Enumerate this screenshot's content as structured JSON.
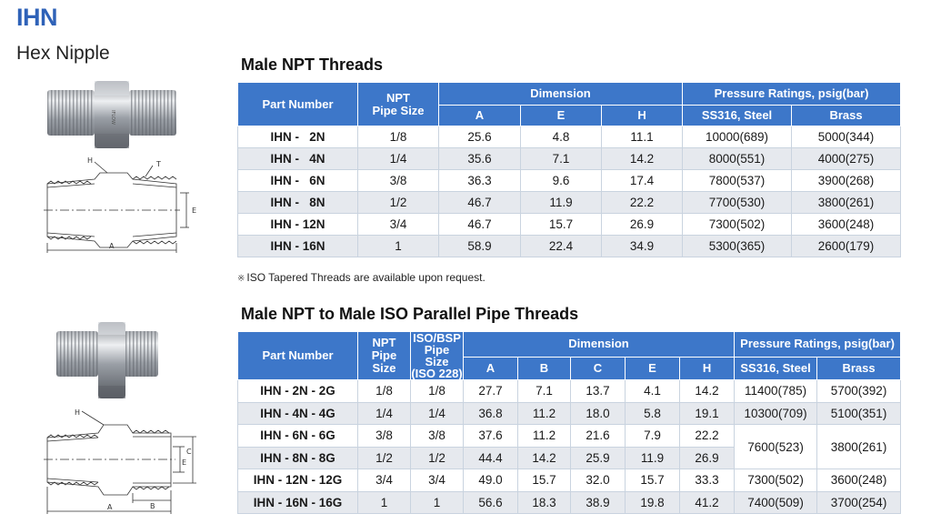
{
  "header": {
    "code": "IHN",
    "subtitle": "Hex Nipple"
  },
  "table1": {
    "title": "Male NPT Threads",
    "headers": {
      "part_number": "Part Number",
      "npt": "NPT",
      "pipe_size": "Pipe Size",
      "dimension": "Dimension",
      "dim_cols": [
        "A",
        "E",
        "H"
      ],
      "pressure": "Pressure Ratings, psig(bar)",
      "pressure_cols": [
        "SS316, Steel",
        "Brass"
      ]
    },
    "rows": [
      {
        "part": "IHN -   2N",
        "npt": "1/8",
        "a": "25.6",
        "e": "4.8",
        "h": "11.1",
        "ss": "10000(689)",
        "brass": "5000(344)"
      },
      {
        "part": "IHN -   4N",
        "npt": "1/4",
        "a": "35.6",
        "e": "7.1",
        "h": "14.2",
        "ss": "8000(551)",
        "brass": "4000(275)"
      },
      {
        "part": "IHN -   6N",
        "npt": "3/8",
        "a": "36.3",
        "e": "9.6",
        "h": "17.4",
        "ss": "7800(537)",
        "brass": "3900(268)"
      },
      {
        "part": "IHN -   8N",
        "npt": "1/2",
        "a": "46.7",
        "e": "11.9",
        "h": "22.2",
        "ss": "7700(530)",
        "brass": "3800(261)"
      },
      {
        "part": "IHN - 12N",
        "npt": "3/4",
        "a": "46.7",
        "e": "15.7",
        "h": "26.9",
        "ss": "7300(502)",
        "brass": "3600(248)"
      },
      {
        "part": "IHN - 16N",
        "npt": "1",
        "a": "58.9",
        "e": "22.4",
        "h": "34.9",
        "ss": "5300(365)",
        "brass": "2600(179)"
      }
    ],
    "note_symbol": "※",
    "note": "ISO Tapered Threads are available upon request."
  },
  "table2": {
    "title": "Male NPT to Male ISO Parallel Pipe Threads",
    "headers": {
      "part_number": "Part Number",
      "npt": "NPT",
      "pipe_size": "Pipe Size",
      "iso_l1": "ISO/BSP",
      "iso_l2": "Pipe Size",
      "iso_l3": "(ISO 228)",
      "dimension": "Dimension",
      "dim_cols": [
        "A",
        "B",
        "C",
        "E",
        "H"
      ],
      "pressure": "Pressure Ratings, psig(bar)",
      "pressure_cols": [
        "SS316, Steel",
        "Brass"
      ]
    },
    "rows": [
      {
        "part": "IHN - 2N - 2G",
        "npt": "1/8",
        "iso": "1/8",
        "a": "27.7",
        "b": "7.1",
        "c": "13.7",
        "e": "4.1",
        "h": "14.2",
        "ss": "11400(785)",
        "brass": "5700(392)"
      },
      {
        "part": "IHN - 4N - 4G",
        "npt": "1/4",
        "iso": "1/4",
        "a": "36.8",
        "b": "11.2",
        "c": "18.0",
        "e": "5.8",
        "h": "19.1",
        "ss": "10300(709)",
        "brass": "5100(351)"
      },
      {
        "part": "IHN - 6N - 6G",
        "npt": "3/8",
        "iso": "3/8",
        "a": "37.6",
        "b": "11.2",
        "c": "21.6",
        "e": "7.9",
        "h": "22.2",
        "ss": "7600(523)",
        "brass": "3800(261)"
      },
      {
        "part": "IHN - 8N - 8G",
        "npt": "1/2",
        "iso": "1/2",
        "a": "44.4",
        "b": "14.2",
        "c": "25.9",
        "e": "11.9",
        "h": "26.9"
      },
      {
        "part": "IHN - 12N - 12G",
        "npt": "3/4",
        "iso": "3/4",
        "a": "49.0",
        "b": "15.7",
        "c": "32.0",
        "e": "15.7",
        "h": "33.3",
        "ss": "7300(502)",
        "brass": "3600(248)"
      },
      {
        "part": "IHN - 16N - 16G",
        "npt": "1",
        "iso": "1",
        "a": "56.6",
        "b": "18.3",
        "c": "38.9",
        "e": "19.8",
        "h": "41.2",
        "ss": "7400(509)",
        "brass": "3700(254)"
      }
    ]
  },
  "drawings": {
    "d1_labels": [
      "H",
      "T",
      "E",
      "A"
    ],
    "d2_labels": [
      "H",
      "E",
      "C",
      "B",
      "A"
    ]
  },
  "colors": {
    "header_blue": "#3d77c9",
    "code_blue": "#2f62b8",
    "row_shade": "#e6e9ee"
  }
}
